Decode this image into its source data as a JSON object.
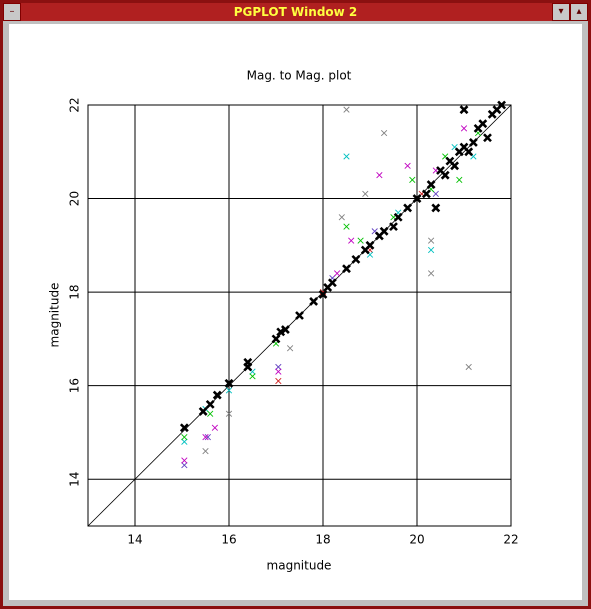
{
  "window": {
    "title": "PGPLOT Window 2"
  },
  "chart_data": {
    "type": "scatter",
    "title": "Mag. to Mag. plot",
    "x_label": "magnitude",
    "y_label": "magnitude",
    "xlim": [
      13,
      22
    ],
    "ylim": [
      13,
      22
    ],
    "xticks": [
      14,
      16,
      18,
      20,
      22
    ],
    "yticks": [
      14,
      16,
      18,
      20,
      22
    ],
    "grid": true,
    "series": [
      {
        "color": "#000000",
        "x": [
          15.05,
          15.45,
          15.6,
          15.75,
          16.0,
          16.4,
          16.4,
          17.0,
          17.1,
          17.2,
          17.5,
          17.8,
          18.0,
          18.1,
          18.2,
          18.5,
          18.7,
          18.9,
          19.0,
          19.2,
          19.3,
          19.5,
          19.6,
          19.8,
          20.0,
          20.2,
          20.3,
          20.5,
          20.6,
          20.7,
          20.8,
          20.9,
          21.0,
          21.1,
          21.2,
          21.3,
          21.5,
          21.6,
          21.7,
          21.8,
          20.4,
          21.0,
          21.4
        ],
        "values": [
          15.1,
          15.45,
          15.6,
          15.8,
          16.05,
          16.4,
          16.5,
          17.0,
          17.15,
          17.2,
          17.5,
          17.8,
          17.95,
          18.1,
          18.2,
          18.5,
          18.7,
          18.9,
          19.0,
          19.2,
          19.3,
          19.4,
          19.6,
          19.8,
          20.0,
          20.1,
          20.3,
          20.6,
          20.5,
          20.8,
          20.7,
          21.0,
          21.1,
          21.0,
          21.2,
          21.5,
          21.3,
          21.8,
          21.9,
          22.0,
          19.8,
          21.9,
          21.6
        ]
      },
      {
        "color": "#00c000",
        "x": [
          15.05,
          15.6,
          16.5,
          17.0,
          18.5,
          18.8,
          19.5,
          19.9,
          20.3,
          20.6,
          20.9,
          21.3,
          21.6
        ],
        "values": [
          14.9,
          15.4,
          16.2,
          16.9,
          19.4,
          19.1,
          19.6,
          20.4,
          20.2,
          20.9,
          20.4,
          21.4,
          21.8
        ]
      },
      {
        "color": "#00c0c0",
        "x": [
          15.05,
          15.5,
          16.0,
          16.5,
          18.5,
          19.0,
          19.6,
          20.3,
          20.8,
          21.2
        ],
        "values": [
          14.8,
          15.5,
          15.9,
          16.3,
          20.9,
          18.8,
          19.7,
          18.9,
          21.1,
          20.9
        ]
      },
      {
        "color": "#c000c0",
        "x": [
          15.05,
          15.5,
          15.7,
          17.05,
          18.3,
          18.6,
          19.2,
          19.8,
          20.4,
          21.0
        ],
        "values": [
          14.4,
          14.9,
          15.1,
          16.3,
          18.4,
          19.1,
          20.5,
          20.7,
          20.6,
          21.5
        ]
      },
      {
        "color": "#d02020",
        "x": [
          17.05,
          18.0,
          19.0,
          20.1
        ],
        "values": [
          16.1,
          18.0,
          18.9,
          20.1
        ]
      },
      {
        "color": "#808080",
        "x": [
          15.5,
          16.0,
          17.3,
          18.5,
          18.9,
          19.3,
          20.3,
          21.1,
          20.3,
          18.4
        ],
        "values": [
          14.6,
          15.4,
          16.8,
          21.9,
          20.1,
          21.4,
          18.4,
          16.4,
          19.1,
          19.6
        ]
      },
      {
        "color": "#6040c0",
        "x": [
          15.05,
          15.55,
          17.05,
          18.2,
          19.1,
          19.6,
          20.4
        ],
        "values": [
          14.3,
          14.9,
          16.4,
          18.3,
          19.3,
          19.6,
          20.1
        ]
      }
    ]
  }
}
